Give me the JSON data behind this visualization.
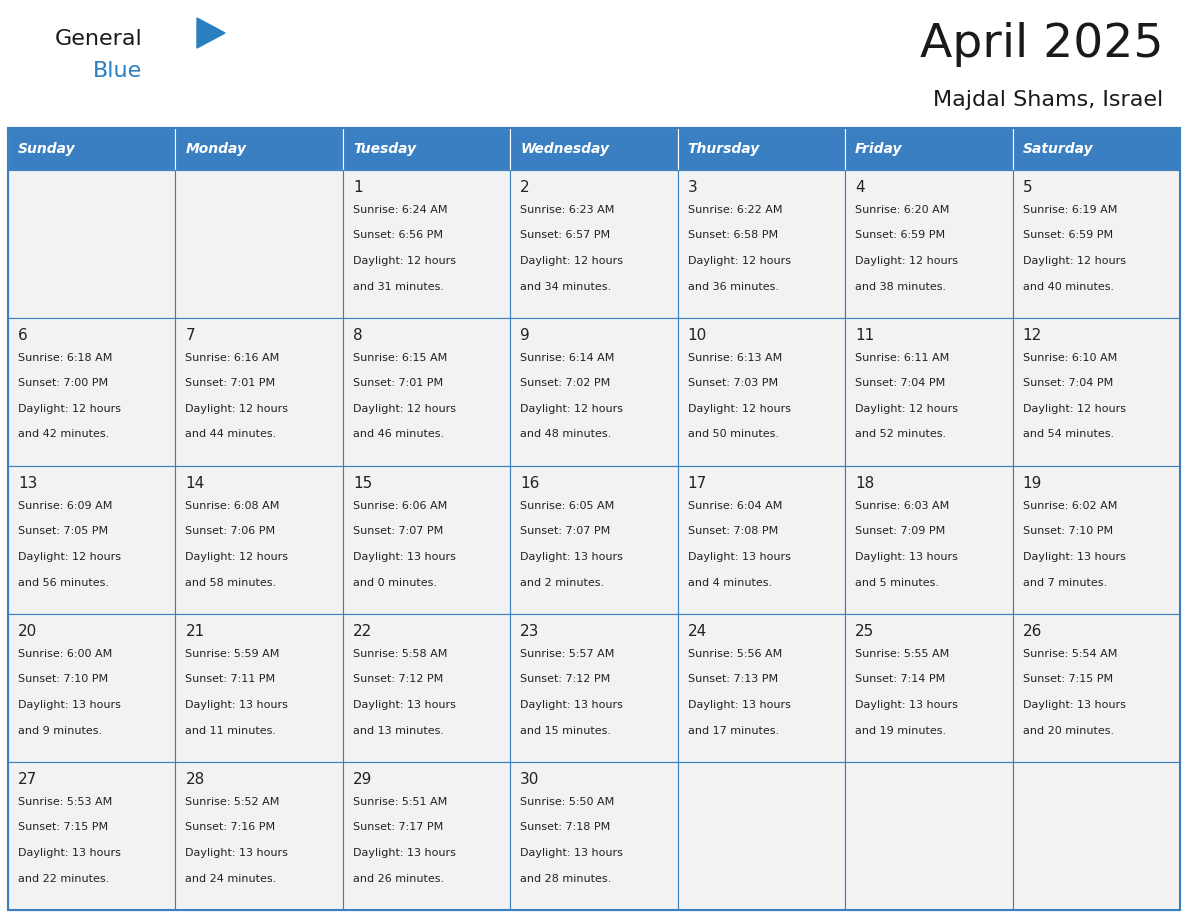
{
  "title": "April 2025",
  "subtitle": "Majdal Shams, Israel",
  "days_of_week": [
    "Sunday",
    "Monday",
    "Tuesday",
    "Wednesday",
    "Thursday",
    "Friday",
    "Saturday"
  ],
  "header_bg": "#3a7fc1",
  "header_text": "#ffffff",
  "cell_bg": "#f2f2f2",
  "cell_bg_empty": "#ffffff",
  "border_color": "#3a7fc1",
  "grid_line_color": "#3a7fc1",
  "text_color": "#222222",
  "title_color": "#1a1a1a",
  "logo_general_color": "#1a1a1a",
  "logo_blue_color": "#2a7fc1",
  "weeks": [
    [
      {
        "day": null,
        "text": ""
      },
      {
        "day": null,
        "text": ""
      },
      {
        "day": 1,
        "text": "Sunrise: 6:24 AM\nSunset: 6:56 PM\nDaylight: 12 hours\nand 31 minutes."
      },
      {
        "day": 2,
        "text": "Sunrise: 6:23 AM\nSunset: 6:57 PM\nDaylight: 12 hours\nand 34 minutes."
      },
      {
        "day": 3,
        "text": "Sunrise: 6:22 AM\nSunset: 6:58 PM\nDaylight: 12 hours\nand 36 minutes."
      },
      {
        "day": 4,
        "text": "Sunrise: 6:20 AM\nSunset: 6:59 PM\nDaylight: 12 hours\nand 38 minutes."
      },
      {
        "day": 5,
        "text": "Sunrise: 6:19 AM\nSunset: 6:59 PM\nDaylight: 12 hours\nand 40 minutes."
      }
    ],
    [
      {
        "day": 6,
        "text": "Sunrise: 6:18 AM\nSunset: 7:00 PM\nDaylight: 12 hours\nand 42 minutes."
      },
      {
        "day": 7,
        "text": "Sunrise: 6:16 AM\nSunset: 7:01 PM\nDaylight: 12 hours\nand 44 minutes."
      },
      {
        "day": 8,
        "text": "Sunrise: 6:15 AM\nSunset: 7:01 PM\nDaylight: 12 hours\nand 46 minutes."
      },
      {
        "day": 9,
        "text": "Sunrise: 6:14 AM\nSunset: 7:02 PM\nDaylight: 12 hours\nand 48 minutes."
      },
      {
        "day": 10,
        "text": "Sunrise: 6:13 AM\nSunset: 7:03 PM\nDaylight: 12 hours\nand 50 minutes."
      },
      {
        "day": 11,
        "text": "Sunrise: 6:11 AM\nSunset: 7:04 PM\nDaylight: 12 hours\nand 52 minutes."
      },
      {
        "day": 12,
        "text": "Sunrise: 6:10 AM\nSunset: 7:04 PM\nDaylight: 12 hours\nand 54 minutes."
      }
    ],
    [
      {
        "day": 13,
        "text": "Sunrise: 6:09 AM\nSunset: 7:05 PM\nDaylight: 12 hours\nand 56 minutes."
      },
      {
        "day": 14,
        "text": "Sunrise: 6:08 AM\nSunset: 7:06 PM\nDaylight: 12 hours\nand 58 minutes."
      },
      {
        "day": 15,
        "text": "Sunrise: 6:06 AM\nSunset: 7:07 PM\nDaylight: 13 hours\nand 0 minutes."
      },
      {
        "day": 16,
        "text": "Sunrise: 6:05 AM\nSunset: 7:07 PM\nDaylight: 13 hours\nand 2 minutes."
      },
      {
        "day": 17,
        "text": "Sunrise: 6:04 AM\nSunset: 7:08 PM\nDaylight: 13 hours\nand 4 minutes."
      },
      {
        "day": 18,
        "text": "Sunrise: 6:03 AM\nSunset: 7:09 PM\nDaylight: 13 hours\nand 5 minutes."
      },
      {
        "day": 19,
        "text": "Sunrise: 6:02 AM\nSunset: 7:10 PM\nDaylight: 13 hours\nand 7 minutes."
      }
    ],
    [
      {
        "day": 20,
        "text": "Sunrise: 6:00 AM\nSunset: 7:10 PM\nDaylight: 13 hours\nand 9 minutes."
      },
      {
        "day": 21,
        "text": "Sunrise: 5:59 AM\nSunset: 7:11 PM\nDaylight: 13 hours\nand 11 minutes."
      },
      {
        "day": 22,
        "text": "Sunrise: 5:58 AM\nSunset: 7:12 PM\nDaylight: 13 hours\nand 13 minutes."
      },
      {
        "day": 23,
        "text": "Sunrise: 5:57 AM\nSunset: 7:12 PM\nDaylight: 13 hours\nand 15 minutes."
      },
      {
        "day": 24,
        "text": "Sunrise: 5:56 AM\nSunset: 7:13 PM\nDaylight: 13 hours\nand 17 minutes."
      },
      {
        "day": 25,
        "text": "Sunrise: 5:55 AM\nSunset: 7:14 PM\nDaylight: 13 hours\nand 19 minutes."
      },
      {
        "day": 26,
        "text": "Sunrise: 5:54 AM\nSunset: 7:15 PM\nDaylight: 13 hours\nand 20 minutes."
      }
    ],
    [
      {
        "day": 27,
        "text": "Sunrise: 5:53 AM\nSunset: 7:15 PM\nDaylight: 13 hours\nand 22 minutes."
      },
      {
        "day": 28,
        "text": "Sunrise: 5:52 AM\nSunset: 7:16 PM\nDaylight: 13 hours\nand 24 minutes."
      },
      {
        "day": 29,
        "text": "Sunrise: 5:51 AM\nSunset: 7:17 PM\nDaylight: 13 hours\nand 26 minutes."
      },
      {
        "day": 30,
        "text": "Sunrise: 5:50 AM\nSunset: 7:18 PM\nDaylight: 13 hours\nand 28 minutes."
      },
      {
        "day": null,
        "text": ""
      },
      {
        "day": null,
        "text": ""
      },
      {
        "day": null,
        "text": ""
      }
    ]
  ]
}
